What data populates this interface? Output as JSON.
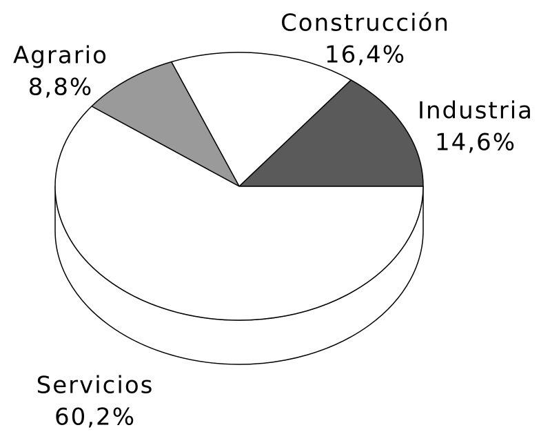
{
  "chart_data": {
    "type": "pie3d",
    "categories": [
      "Industria",
      "Construcción",
      "Agrario",
      "Servicios"
    ],
    "values": [
      14.6,
      16.4,
      8.8,
      60.2
    ],
    "value_labels": [
      "14,6%",
      "16,4%",
      "8,8%",
      "60,2%"
    ],
    "colors": [
      "#5a5a5a",
      "#ffffff",
      "#9a9a9a",
      "#ffffff"
    ]
  }
}
